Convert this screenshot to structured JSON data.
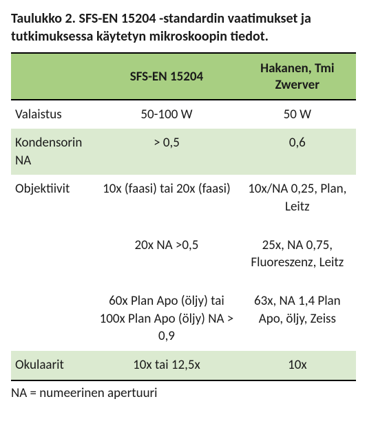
{
  "caption": "Taulukko 2. SFS-EN 15204 -standardin vaatimukset ja tutkimuksessa käytetyn mikroskoopin tiedot.",
  "table": {
    "header_bg": "#a8cf82",
    "alt_row_bg": "#dbead0",
    "border_color": "#000000",
    "columns": [
      {
        "label": "",
        "align": "left"
      },
      {
        "label": "SFS-EN 15204",
        "align": "center"
      },
      {
        "label": "Hakanen, Tmi Zwerver",
        "align": "center"
      }
    ],
    "rows": [
      {
        "cells": [
          "Valaistus",
          "50-100 W",
          "50 W"
        ],
        "alt": false
      },
      {
        "cells": [
          "Kondensorin NA",
          "> 0,5",
          "0,6"
        ],
        "alt": true
      },
      {
        "cells": [
          "Objektiivit",
          "10x (faasi) tai 20x (faasi)",
          "10x/NA 0,25, Plan, Leitz"
        ],
        "alt": false
      },
      {
        "cells": [
          "",
          "20x NA >0,5",
          "25x, NA 0,75, Fluoreszenz, Leitz"
        ],
        "alt": false,
        "sub": true
      },
      {
        "cells": [
          "",
          "60x Plan Apo (öljy) tai 100x Plan Apo (öljy) NA > 0,9",
          "63x, NA 1,4 Plan Apo, öljy, Zeiss"
        ],
        "alt": false,
        "sub": true
      },
      {
        "cells": [
          "Okulaarit",
          "10x tai 12,5x",
          "10x"
        ],
        "alt": true,
        "last": true
      }
    ]
  },
  "footnote": "NA = numeerinen apertuuri"
}
